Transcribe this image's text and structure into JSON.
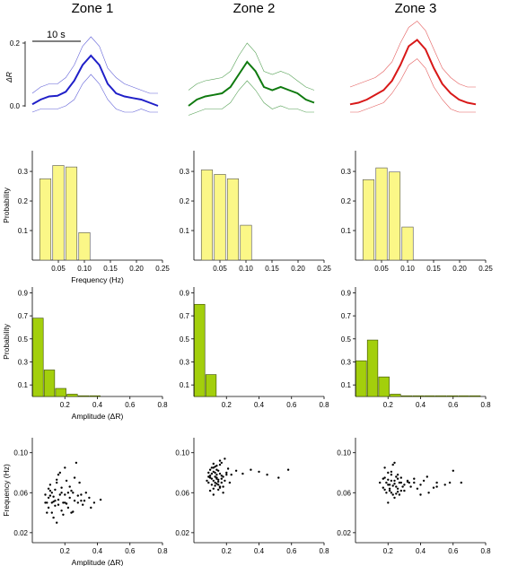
{
  "zones": [
    "Zone 1",
    "Zone 2",
    "Zone 3"
  ],
  "colors": {
    "zone1": "#1f1fc8",
    "zone2": "#0f7a0f",
    "zone3": "#d81818",
    "freq_bar": "#fbf787",
    "amp_bar": "#a3cf0c"
  },
  "chart_data": [
    {
      "type": "line",
      "row": "response",
      "ylabel": "ΔR",
      "ytick_labels": [
        "0.0",
        "0.2"
      ],
      "ylim": [
        -0.02,
        0.22
      ],
      "scale_bar_label": "10 s",
      "xlim": [
        0,
        30
      ],
      "series": [
        {
          "zone": "Zone 1",
          "x": [
            0,
            2,
            4,
            6,
            8,
            10,
            12,
            14,
            16,
            18,
            20,
            22,
            24,
            26,
            28,
            30
          ],
          "mean": [
            0.005,
            0.02,
            0.03,
            0.032,
            0.045,
            0.08,
            0.13,
            0.16,
            0.13,
            0.07,
            0.04,
            0.03,
            0.025,
            0.02,
            0.01,
            0.0
          ],
          "upper": [
            0.04,
            0.06,
            0.07,
            0.07,
            0.09,
            0.13,
            0.19,
            0.22,
            0.19,
            0.12,
            0.09,
            0.07,
            0.06,
            0.05,
            0.04,
            0.04
          ],
          "lower": [
            -0.02,
            -0.01,
            -0.01,
            -0.01,
            0.0,
            0.02,
            0.07,
            0.1,
            0.07,
            0.02,
            -0.01,
            -0.02,
            -0.02,
            -0.01,
            -0.02,
            -0.02
          ]
        },
        {
          "zone": "Zone 2",
          "x": [
            0,
            2,
            4,
            6,
            8,
            10,
            12,
            14,
            16,
            18,
            20,
            22,
            24,
            26,
            28,
            30
          ],
          "mean": [
            0.0,
            0.02,
            0.03,
            0.035,
            0.04,
            0.06,
            0.1,
            0.14,
            0.11,
            0.06,
            0.05,
            0.06,
            0.05,
            0.04,
            0.02,
            0.01
          ],
          "upper": [
            0.05,
            0.07,
            0.08,
            0.085,
            0.09,
            0.11,
            0.16,
            0.2,
            0.17,
            0.11,
            0.1,
            0.11,
            0.1,
            0.08,
            0.06,
            0.05
          ],
          "lower": [
            -0.03,
            -0.02,
            -0.01,
            -0.01,
            -0.01,
            0.01,
            0.05,
            0.08,
            0.05,
            0.01,
            -0.01,
            0.0,
            -0.01,
            -0.01,
            -0.02,
            -0.02
          ]
        },
        {
          "zone": "Zone 3",
          "x": [
            0,
            2,
            4,
            6,
            8,
            10,
            12,
            14,
            16,
            18,
            20,
            22,
            24,
            26,
            28,
            30
          ],
          "mean": [
            0.005,
            0.01,
            0.02,
            0.035,
            0.05,
            0.08,
            0.13,
            0.19,
            0.21,
            0.18,
            0.12,
            0.07,
            0.04,
            0.02,
            0.01,
            0.005
          ],
          "upper": [
            0.06,
            0.07,
            0.08,
            0.09,
            0.11,
            0.14,
            0.2,
            0.25,
            0.27,
            0.24,
            0.18,
            0.12,
            0.09,
            0.07,
            0.06,
            0.06
          ],
          "lower": [
            -0.02,
            -0.02,
            -0.01,
            0.0,
            0.01,
            0.04,
            0.08,
            0.13,
            0.15,
            0.12,
            0.06,
            0.02,
            -0.01,
            -0.02,
            -0.02,
            -0.02
          ]
        }
      ]
    },
    {
      "type": "bar",
      "row": "frequency_histogram",
      "ylabel": "Probability",
      "xlabel": "Frequency (Hz)",
      "xlim": [
        0,
        0.25
      ],
      "ylim": [
        0,
        0.37
      ],
      "xticks": [
        0.05,
        0.1,
        0.15,
        0.2,
        0.25
      ],
      "xtick_labels": [
        "0.05",
        "0.10",
        "0.15",
        "0.20",
        "0.25"
      ],
      "yticks": [
        0.1,
        0.2,
        0.3
      ],
      "ytick_labels": [
        "0.1",
        "0.2",
        "0.3"
      ],
      "bin_centers": [
        0.025,
        0.05,
        0.075,
        0.1
      ],
      "bin_width": 0.025,
      "series": [
        {
          "zone": "Zone 1",
          "values": [
            0.275,
            0.32,
            0.315,
            0.093
          ]
        },
        {
          "zone": "Zone 2",
          "values": [
            0.305,
            0.29,
            0.275,
            0.118
          ]
        },
        {
          "zone": "Zone 3",
          "values": [
            0.272,
            0.312,
            0.298,
            0.112
          ]
        }
      ]
    },
    {
      "type": "bar",
      "row": "amplitude_histogram",
      "ylabel": "Probability",
      "xlabel": "Amplitude (ΔR)",
      "xlim": [
        0,
        0.8
      ],
      "ylim": [
        0,
        0.95
      ],
      "xticks": [
        0.2,
        0.4,
        0.6,
        0.8
      ],
      "xtick_labels": [
        "0.2",
        "0.4",
        "0.6",
        "0.8"
      ],
      "yticks": [
        0.1,
        0.3,
        0.5,
        0.7,
        0.9
      ],
      "ytick_labels": [
        "0.1",
        "0.3",
        "0.5",
        "0.7",
        "0.9"
      ],
      "bin_centers": [
        0.035,
        0.105,
        0.175,
        0.245,
        0.315,
        0.385,
        0.455,
        0.525,
        0.595,
        0.665,
        0.735
      ],
      "bin_width": 0.07,
      "series": [
        {
          "zone": "Zone 1",
          "values": [
            0.68,
            0.23,
            0.07,
            0.02,
            0.004,
            0.002,
            0,
            0,
            0,
            0,
            0
          ]
        },
        {
          "zone": "Zone 2",
          "values": [
            0.8,
            0.19,
            0,
            0,
            0,
            0,
            0,
            0,
            0,
            0,
            0
          ]
        },
        {
          "zone": "Zone 3",
          "values": [
            0.31,
            0.49,
            0.17,
            0.02,
            0.004,
            0.003,
            0.003,
            0.003,
            0.003,
            0.003,
            0.002
          ]
        }
      ]
    },
    {
      "type": "scatter",
      "row": "amplitude_vs_frequency",
      "xlabel": "Amplitude (ΔR)",
      "ylabel": "Frequency (Hz)",
      "xlim": [
        0,
        0.8
      ],
      "ylim": [
        0.01,
        0.115
      ],
      "xticks": [
        0.2,
        0.4,
        0.6,
        0.8
      ],
      "xtick_labels": [
        "0.2",
        "0.4",
        "0.6",
        "0.8"
      ],
      "yticks": [
        0.02,
        0.06,
        0.1
      ],
      "ytick_labels": [
        "0.02",
        "0.06",
        "0.10"
      ],
      "series": [
        {
          "zone": "Zone 1",
          "x": [
            0.08,
            0.1,
            0.12,
            0.14,
            0.15,
            0.16,
            0.18,
            0.2,
            0.22,
            0.24,
            0.26,
            0.09,
            0.11,
            0.13,
            0.17,
            0.19,
            0.21,
            0.23,
            0.25,
            0.28,
            0.3,
            0.32,
            0.35,
            0.38,
            0.42,
            0.1,
            0.12,
            0.14,
            0.16,
            0.18,
            0.2,
            0.22,
            0.27,
            0.29,
            0.31,
            0.15,
            0.13,
            0.11,
            0.09,
            0.24,
            0.2,
            0.17,
            0.26,
            0.33,
            0.36,
            0.08,
            0.12,
            0.19,
            0.23,
            0.28,
            0.14,
            0.16,
            0.1,
            0.21,
            0.25,
            0.3,
            0.18,
            0.15,
            0.13,
            0.11
          ],
          "y": [
            0.05,
            0.055,
            0.06,
            0.052,
            0.07,
            0.048,
            0.065,
            0.058,
            0.045,
            0.062,
            0.075,
            0.04,
            0.068,
            0.035,
            0.08,
            0.05,
            0.072,
            0.055,
            0.06,
            0.05,
            0.058,
            0.052,
            0.055,
            0.05,
            0.053,
            0.045,
            0.04,
            0.063,
            0.078,
            0.042,
            0.05,
            0.06,
            0.09,
            0.07,
            0.048,
            0.03,
            0.056,
            0.062,
            0.05,
            0.04,
            0.085,
            0.058,
            0.052,
            0.06,
            0.045,
            0.058,
            0.05,
            0.038,
            0.066,
            0.057,
            0.047,
            0.053,
            0.064,
            0.049,
            0.041,
            0.052,
            0.06,
            0.073,
            0.051,
            0.057
          ]
        },
        {
          "zone": "Zone 2",
          "x": [
            0.08,
            0.09,
            0.1,
            0.11,
            0.12,
            0.13,
            0.14,
            0.15,
            0.16,
            0.17,
            0.18,
            0.19,
            0.2,
            0.21,
            0.22,
            0.1,
            0.12,
            0.14,
            0.16,
            0.18,
            0.11,
            0.13,
            0.15,
            0.17,
            0.09,
            0.12,
            0.14,
            0.16,
            0.19,
            0.23,
            0.26,
            0.3,
            0.35,
            0.4,
            0.45,
            0.52,
            0.58,
            0.1,
            0.13,
            0.15,
            0.12,
            0.14,
            0.17,
            0.11,
            0.16,
            0.18,
            0.13,
            0.15,
            0.1,
            0.12,
            0.2,
            0.14,
            0.16,
            0.11,
            0.13,
            0.09,
            0.15,
            0.17,
            0.12,
            0.14
          ],
          "y": [
            0.072,
            0.08,
            0.075,
            0.068,
            0.085,
            0.07,
            0.078,
            0.082,
            0.065,
            0.09,
            0.076,
            0.072,
            0.08,
            0.084,
            0.07,
            0.062,
            0.058,
            0.074,
            0.092,
            0.066,
            0.079,
            0.086,
            0.071,
            0.077,
            0.07,
            0.064,
            0.083,
            0.088,
            0.094,
            0.078,
            0.082,
            0.079,
            0.083,
            0.081,
            0.078,
            0.075,
            0.083,
            0.077,
            0.067,
            0.073,
            0.081,
            0.069,
            0.074,
            0.085,
            0.079,
            0.06,
            0.076,
            0.068,
            0.083,
            0.072,
            0.078,
            0.087,
            0.066,
            0.074,
            0.08,
            0.076,
            0.063,
            0.07,
            0.089,
            0.075
          ],
          "series_note": ""
        },
        {
          "zone": "Zone 3",
          "x": [
            0.15,
            0.17,
            0.18,
            0.19,
            0.2,
            0.21,
            0.22,
            0.23,
            0.24,
            0.25,
            0.26,
            0.27,
            0.28,
            0.3,
            0.32,
            0.34,
            0.36,
            0.38,
            0.4,
            0.42,
            0.45,
            0.48,
            0.5,
            0.55,
            0.6,
            0.65,
            0.18,
            0.2,
            0.22,
            0.24,
            0.26,
            0.28,
            0.21,
            0.23,
            0.25,
            0.19,
            0.27,
            0.29,
            0.17,
            0.2,
            0.22,
            0.24,
            0.26,
            0.3,
            0.33,
            0.36,
            0.4,
            0.44,
            0.5,
            0.58,
            0.21,
            0.23,
            0.25,
            0.2,
            0.22,
            0.18,
            0.24,
            0.26,
            0.28,
            0.32
          ],
          "y": [
            0.07,
            0.065,
            0.075,
            0.06,
            0.08,
            0.068,
            0.072,
            0.058,
            0.09,
            0.066,
            0.074,
            0.07,
            0.062,
            0.068,
            0.072,
            0.066,
            0.07,
            0.064,
            0.068,
            0.072,
            0.06,
            0.065,
            0.07,
            0.068,
            0.082,
            0.07,
            0.085,
            0.05,
            0.078,
            0.055,
            0.064,
            0.07,
            0.062,
            0.088,
            0.076,
            0.07,
            0.058,
            0.066,
            0.074,
            0.068,
            0.06,
            0.072,
            0.078,
            0.062,
            0.07,
            0.074,
            0.058,
            0.076,
            0.066,
            0.07,
            0.064,
            0.067,
            0.059,
            0.073,
            0.081,
            0.063,
            0.069,
            0.061,
            0.075,
            0.071
          ]
        }
      ]
    }
  ]
}
